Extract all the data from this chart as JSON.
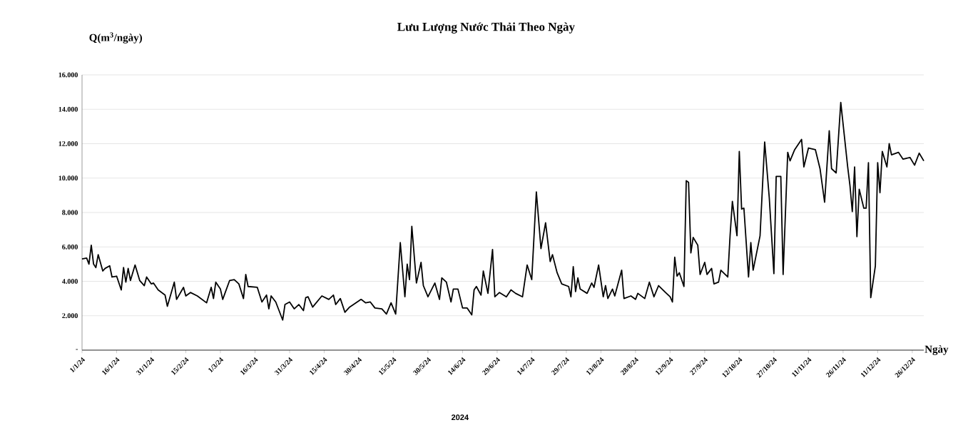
{
  "chart_data": {
    "type": "line",
    "title": "Lưu Lượng Nước Thải Theo Ngày",
    "ylabel": "Q(m$^{3}$/ngày)",
    "xlabel": "Ngày",
    "annotations": [
      "2024"
    ],
    "x": [
      "2024-01-01",
      "2024-01-03",
      "2024-01-04",
      "2024-01-05",
      "2024-01-06",
      "2024-01-07",
      "2024-01-08",
      "2024-01-10",
      "2024-01-11",
      "2024-01-13",
      "2024-01-14",
      "2024-01-16",
      "2024-01-18",
      "2024-01-19",
      "2024-01-20",
      "2024-01-21",
      "2024-01-22",
      "2024-01-24",
      "2024-01-26",
      "2024-01-28",
      "2024-01-29",
      "2024-01-31",
      "2024-02-01",
      "2024-02-03",
      "2024-02-06",
      "2024-02-07",
      "2024-02-10",
      "2024-02-11",
      "2024-02-14",
      "2024-02-15",
      "2024-02-17",
      "2024-02-20",
      "2024-02-24",
      "2024-02-26",
      "2024-02-27",
      "2024-02-28",
      "2024-03-01",
      "2024-03-02",
      "2024-03-05",
      "2024-03-07",
      "2024-03-09",
      "2024-03-11",
      "2024-03-12",
      "2024-03-13",
      "2024-03-17",
      "2024-03-19",
      "2024-03-21",
      "2024-03-22",
      "2024-03-23",
      "2024-03-25",
      "2024-03-28",
      "2024-03-29",
      "2024-03-31",
      "2024-04-02",
      "2024-04-04",
      "2024-04-06",
      "2024-04-07",
      "2024-04-08",
      "2024-04-10",
      "2024-04-14",
      "2024-04-17",
      "2024-04-19",
      "2024-04-20",
      "2024-04-22",
      "2024-04-24",
      "2024-04-26",
      "2024-05-01",
      "2024-05-03",
      "2024-05-05",
      "2024-05-07",
      "2024-05-10",
      "2024-05-12",
      "2024-05-14",
      "2024-05-16",
      "2024-05-18",
      "2024-05-20",
      "2024-05-21",
      "2024-05-22",
      "2024-05-23",
      "2024-05-25",
      "2024-05-27",
      "2024-05-28",
      "2024-05-30",
      "2024-06-02",
      "2024-06-04",
      "2024-06-05",
      "2024-06-07",
      "2024-06-09",
      "2024-06-10",
      "2024-06-12",
      "2024-06-14",
      "2024-06-16",
      "2024-06-18",
      "2024-06-19",
      "2024-06-20",
      "2024-06-22",
      "2024-06-23",
      "2024-06-25",
      "2024-06-27",
      "2024-06-28",
      "2024-06-30",
      "2024-07-03",
      "2024-07-05",
      "2024-07-07",
      "2024-07-10",
      "2024-07-12",
      "2024-07-14",
      "2024-07-16",
      "2024-07-18",
      "2024-07-20",
      "2024-07-22",
      "2024-07-23",
      "2024-07-25",
      "2024-07-27",
      "2024-07-30",
      "2024-07-31",
      "2024-08-01",
      "2024-08-02",
      "2024-08-03",
      "2024-08-04",
      "2024-08-07",
      "2024-08-09",
      "2024-08-10",
      "2024-08-12",
      "2024-08-14",
      "2024-08-15",
      "2024-08-16",
      "2024-08-18",
      "2024-08-19",
      "2024-08-22",
      "2024-08-23",
      "2024-08-26",
      "2024-08-28",
      "2024-08-29",
      "2024-09-01",
      "2024-09-03",
      "2024-09-05",
      "2024-09-07",
      "2024-09-10",
      "2024-09-12",
      "2024-09-13",
      "2024-09-14",
      "2024-09-15",
      "2024-09-16",
      "2024-09-18",
      "2024-09-19",
      "2024-09-20",
      "2024-09-21",
      "2024-09-22",
      "2024-09-24",
      "2024-09-25",
      "2024-09-27",
      "2024-09-28",
      "2024-09-30",
      "2024-10-01",
      "2024-10-03",
      "2024-10-04",
      "2024-10-07",
      "2024-10-08",
      "2024-10-09",
      "2024-10-11",
      "2024-10-12",
      "2024-10-13",
      "2024-10-14",
      "2024-10-16",
      "2024-10-17",
      "2024-10-18",
      "2024-10-21",
      "2024-10-23",
      "2024-10-25",
      "2024-10-27",
      "2024-10-28",
      "2024-10-30",
      "2024-10-31",
      "2024-11-02",
      "2024-11-03",
      "2024-11-05",
      "2024-11-08",
      "2024-11-09",
      "2024-11-11",
      "2024-11-14",
      "2024-11-16",
      "2024-11-18",
      "2024-11-20",
      "2024-11-21",
      "2024-11-23",
      "2024-11-25",
      "2024-11-28",
      "2024-11-29",
      "2024-11-30",
      "2024-12-01",
      "2024-12-02",
      "2024-12-03",
      "2024-12-05",
      "2024-12-06",
      "2024-12-07",
      "2024-12-08",
      "2024-12-10",
      "2024-12-11",
      "2024-12-12",
      "2024-12-13",
      "2024-12-15",
      "2024-12-16",
      "2024-12-17",
      "2024-12-20",
      "2024-12-22",
      "2024-12-25",
      "2024-12-27",
      "2024-12-29",
      "2024-12-31"
    ],
    "values": [
      5300,
      5350,
      5000,
      6100,
      5000,
      4800,
      5550,
      4600,
      4750,
      4900,
      4250,
      4300,
      3500,
      4800,
      3950,
      4750,
      4050,
      4950,
      4050,
      3750,
      4250,
      3850,
      3900,
      3500,
      3200,
      2550,
      3950,
      2950,
      3650,
      3150,
      3350,
      3150,
      2750,
      3650,
      3000,
      3950,
      3550,
      2950,
      4050,
      4100,
      3850,
      3000,
      4400,
      3700,
      3650,
      2800,
      3200,
      2400,
      3150,
      2800,
      1750,
      2650,
      2800,
      2400,
      2650,
      2300,
      3050,
      3100,
      2500,
      3150,
      2950,
      3200,
      2650,
      3000,
      2200,
      2500,
      2950,
      2750,
      2800,
      2450,
      2400,
      2100,
      2750,
      2100,
      6250,
      3100,
      5000,
      4100,
      7200,
      3900,
      5100,
      3750,
      3100,
      3900,
      2950,
      4200,
      3950,
      2800,
      3550,
      3550,
      2450,
      2450,
      2050,
      3500,
      3700,
      3200,
      4600,
      3300,
      5850,
      3100,
      3350,
      3100,
      3500,
      3300,
      3100,
      4950,
      4100,
      9200,
      5900,
      7400,
      5150,
      5550,
      4500,
      3850,
      3700,
      3100,
      4850,
      3400,
      4200,
      3550,
      3300,
      3900,
      3650,
      4950,
      3100,
      3750,
      3000,
      3550,
      3150,
      4650,
      3000,
      3150,
      2950,
      3300,
      3000,
      3950,
      3100,
      3750,
      3350,
      3100,
      2800,
      5400,
      4300,
      4500,
      3700,
      9850,
      9750,
      5650,
      6550,
      6100,
      4400,
      5100,
      4400,
      4750,
      3850,
      3950,
      4650,
      4250,
      6650,
      8650,
      6650,
      11550,
      8200,
      8250,
      4250,
      6250,
      4650,
      6650,
      12100,
      8850,
      4450,
      10100,
      10100,
      4400,
      11500,
      11000,
      11650,
      12250,
      10650,
      11750,
      11650,
      10550,
      8600,
      12750,
      10550,
      10300,
      14400,
      10650,
      9550,
      8050,
      10650,
      6600,
      9350,
      8250,
      8250,
      10900,
      3050,
      4900,
      10900,
      9150,
      11550,
      10650,
      12000,
      11350,
      11500,
      11100,
      11200,
      10750,
      11450,
      11000
    ],
    "color": "#000000",
    "marker": "none",
    "line_style": "solid",
    "grid": "y",
    "xlim": [
      "2024-01-01",
      "2024-12-31"
    ],
    "xticks": [
      {
        "value": "2024-01-01",
        "label": "1/1/24"
      },
      {
        "value": "2024-01-16",
        "label": "16/1/24"
      },
      {
        "value": "2024-01-31",
        "label": "31/1/24"
      },
      {
        "value": "2024-02-15",
        "label": "15/2/24"
      },
      {
        "value": "2024-03-01",
        "label": "1/3/24"
      },
      {
        "value": "2024-03-16",
        "label": "16/3/24"
      },
      {
        "value": "2024-03-31",
        "label": "31/3/24"
      },
      {
        "value": "2024-04-15",
        "label": "15/4/24"
      },
      {
        "value": "2024-04-30",
        "label": "30/4/24"
      },
      {
        "value": "2024-05-15",
        "label": "15/5/24"
      },
      {
        "value": "2024-05-30",
        "label": "30/5/24"
      },
      {
        "value": "2024-06-14",
        "label": "14/6/24"
      },
      {
        "value": "2024-06-29",
        "label": "29/6/24"
      },
      {
        "value": "2024-07-14",
        "label": "14/7/24"
      },
      {
        "value": "2024-07-29",
        "label": "29/7/24"
      },
      {
        "value": "2024-08-13",
        "label": "13/8/24"
      },
      {
        "value": "2024-08-28",
        "label": "28/8/24"
      },
      {
        "value": "2024-09-12",
        "label": "12/9/24"
      },
      {
        "value": "2024-09-27",
        "label": "27/9/24"
      },
      {
        "value": "2024-10-12",
        "label": "12/10/24"
      },
      {
        "value": "2024-10-27",
        "label": "27/10/24"
      },
      {
        "value": "2024-11-11",
        "label": "11/11/24"
      },
      {
        "value": "2024-11-26",
        "label": "26/11/24"
      },
      {
        "value": "2024-12-11",
        "label": "11/12/24"
      },
      {
        "value": "2024-12-26",
        "label": "26/12/24"
      }
    ],
    "ylim": [
      0,
      16000
    ],
    "yticks": [
      {
        "value": 0,
        "label": "-"
      },
      {
        "value": 2000,
        "label": "2.000"
      },
      {
        "value": 4000,
        "label": "4.000"
      },
      {
        "value": 6000,
        "label": "6.000"
      },
      {
        "value": 8000,
        "label": "8.000"
      },
      {
        "value": 10000,
        "label": "10.000"
      },
      {
        "value": 12000,
        "label": "12.000"
      },
      {
        "value": 14000,
        "label": "14.000"
      },
      {
        "value": 16000,
        "label": "16.000"
      }
    ]
  }
}
